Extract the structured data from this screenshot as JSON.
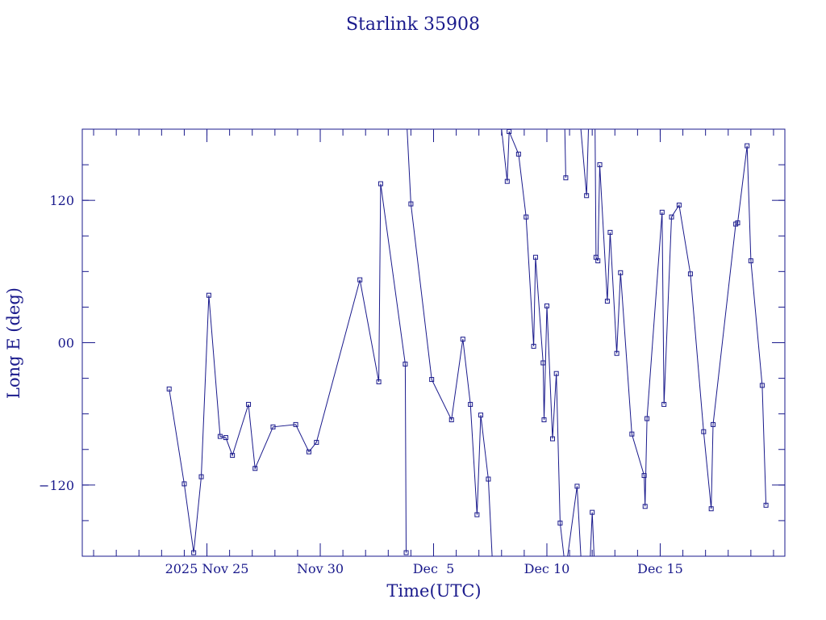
{
  "chart_data": {
    "type": "line",
    "title": "Starlink 35908",
    "xlabel": "Time(UTC)",
    "ylabel": "Long E (deg)",
    "x_unit": "day",
    "xlim": [
      "2025-11-19T12:00",
      "2025-12-20T12:00"
    ],
    "ylim": [
      -180,
      180
    ],
    "x_ticks": [
      {
        "x": "2025-11-25",
        "label": "2025 Nov 25"
      },
      {
        "x": "2025-11-30",
        "label": "Nov 30"
      },
      {
        "x": "2025-12-05",
        "label": "Dec  5"
      },
      {
        "x": "2025-12-10",
        "label": "Dec 10"
      },
      {
        "x": "2025-12-15",
        "label": "Dec 15"
      }
    ],
    "y_ticks": [
      {
        "y": 120,
        "label": "120"
      },
      {
        "y": 0,
        "label": "00"
      },
      {
        "y": -120,
        "label": "−120"
      }
    ],
    "y_minor_step": 30,
    "color": "#1a1a8c",
    "series": [
      {
        "points": [
          [
            "2025-11-23T08:00",
            -39
          ],
          [
            "2025-11-24T00:00",
            -119
          ],
          [
            "2025-11-24T10:00",
            -177
          ],
          [
            "2025-11-24T18:00",
            -113
          ],
          [
            "2025-11-25T02:00",
            40
          ],
          [
            "2025-11-25T14:00",
            -79
          ],
          [
            "2025-11-25T20:00",
            -80
          ],
          [
            "2025-11-26T03:00",
            -95
          ],
          [
            "2025-11-26T20:00",
            -52
          ],
          [
            "2025-11-27T03:00",
            -106
          ],
          [
            "2025-11-27T22:00",
            -71
          ],
          [
            "2025-11-28T22:00",
            -69
          ],
          [
            "2025-11-29T12:00",
            -92
          ],
          [
            "2025-11-29T20:00",
            -84
          ],
          [
            "2025-12-01T18:00",
            53
          ],
          [
            "2025-12-02T14:00",
            -33
          ],
          [
            "2025-12-02T16:00",
            134
          ],
          [
            "2025-12-03T18:00",
            -18
          ],
          [
            "2025-12-03T19:00",
            -177
          ]
        ]
      },
      {
        "points": [
          [
            "2025-12-03T20:00",
            180
          ],
          [
            "2025-12-04T00:00",
            117
          ],
          [
            "2025-12-04T22:00",
            -31
          ],
          [
            "2025-12-05T19:00",
            -65
          ],
          [
            "2025-12-06T07:00",
            3
          ],
          [
            "2025-12-06T15:00",
            -52
          ],
          [
            "2025-12-06T22:00",
            -145
          ],
          [
            "2025-12-07T02:00",
            -61
          ],
          [
            "2025-12-07T10:00",
            -115
          ],
          [
            "2025-12-07T14:00",
            -180
          ]
        ]
      },
      {
        "points": [
          [
            "2025-12-08T00:00",
            180
          ],
          [
            "2025-12-08T06:00",
            136
          ],
          [
            "2025-12-08T08:00",
            178
          ],
          [
            "2025-12-08T18:00",
            159
          ],
          [
            "2025-12-09T02:00",
            106
          ],
          [
            "2025-12-09T10:00",
            -3
          ],
          [
            "2025-12-09T12:00",
            72
          ],
          [
            "2025-12-09T20:00",
            -17
          ],
          [
            "2025-12-09T21:00",
            -65
          ],
          [
            "2025-12-10T00:00",
            31
          ],
          [
            "2025-12-10T06:00",
            -81
          ],
          [
            "2025-12-10T10:00",
            -26
          ],
          [
            "2025-12-10T14:00",
            -152
          ],
          [
            "2025-12-10T18:00",
            -180
          ]
        ]
      },
      {
        "points": [
          [
            "2025-12-10T19:00",
            180
          ],
          [
            "2025-12-10T20:00",
            139
          ]
        ]
      },
      {
        "points": [
          [
            "2025-12-10T22:00",
            -180
          ],
          [
            "2025-12-11T08:00",
            -121
          ],
          [
            "2025-12-11T12:00",
            -180
          ]
        ]
      },
      {
        "points": [
          [
            "2025-12-11T12:00",
            180
          ],
          [
            "2025-12-11T18:00",
            124
          ],
          [
            "2025-12-11T20:00",
            180
          ]
        ]
      },
      {
        "points": [
          [
            "2025-12-11T22:00",
            -180
          ],
          [
            "2025-12-12T00:00",
            -143
          ],
          [
            "2025-12-12T02:00",
            -180
          ]
        ]
      },
      {
        "points": [
          [
            "2025-12-12T03:00",
            180
          ],
          [
            "2025-12-12T04:00",
            72
          ],
          [
            "2025-12-12T06:00",
            69
          ],
          [
            "2025-12-12T08:00",
            150
          ],
          [
            "2025-12-12T16:00",
            35
          ],
          [
            "2025-12-12T19:00",
            93
          ],
          [
            "2025-12-13T02:00",
            -9
          ],
          [
            "2025-12-13T06:00",
            59
          ],
          [
            "2025-12-13T18:00",
            -77
          ],
          [
            "2025-12-14T07:00",
            -112
          ],
          [
            "2025-12-14T08:00",
            -138
          ],
          [
            "2025-12-14T10:00",
            -64
          ],
          [
            "2025-12-15T02:00",
            110
          ],
          [
            "2025-12-15T04:00",
            -52
          ],
          [
            "2025-12-15T12:00",
            106
          ],
          [
            "2025-12-15T20:00",
            116
          ],
          [
            "2025-12-16T08:00",
            58
          ],
          [
            "2025-12-16T22:00",
            -75
          ],
          [
            "2025-12-17T06:00",
            -140
          ],
          [
            "2025-12-17T08:00",
            -69
          ],
          [
            "2025-12-18T08:00",
            100
          ],
          [
            "2025-12-18T10:00",
            101
          ],
          [
            "2025-12-18T20:00",
            166
          ],
          [
            "2025-12-19T00:00",
            69
          ],
          [
            "2025-12-19T12:00",
            -36
          ],
          [
            "2025-12-19T16:00",
            -137
          ]
        ]
      }
    ]
  }
}
